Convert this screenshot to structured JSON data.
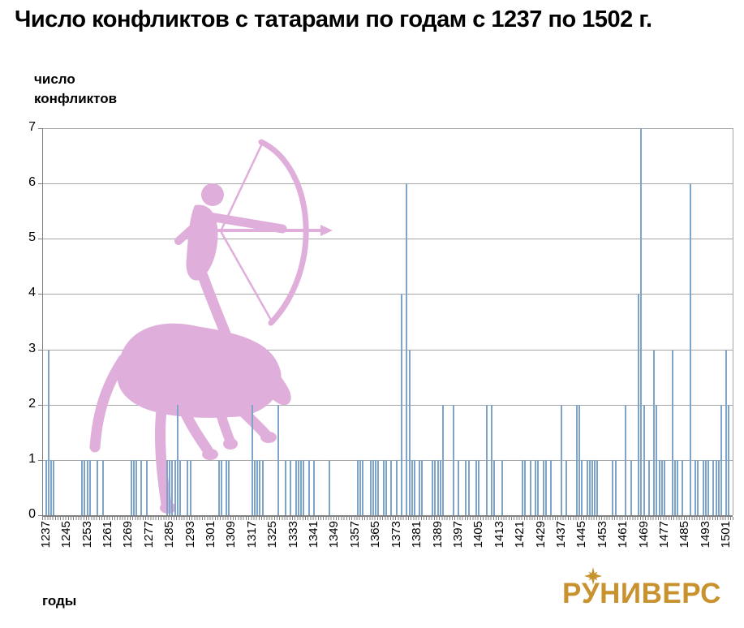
{
  "title": "Число конфликтов с татарами по годам с 1237 по 1502 г.",
  "y_axis_title": {
    "line1": "число",
    "line2": "конфликтов"
  },
  "x_axis_title": "годы",
  "logo": {
    "part1": "Р",
    "part2": "У",
    "part3": "НИВЕРС",
    "star_icon": "eight-ray-star"
  },
  "colors": {
    "bar": "#7fa4c9",
    "horse": "#dfaeda",
    "grid": "#a6a6a6",
    "axis": "#7f7f7f",
    "logo": "#c8922e",
    "text": "#000000"
  },
  "chart_data": {
    "type": "bar",
    "title": "Число конфликтов с татарами по годам с 1237 по 1502 г.",
    "xlabel": "годы",
    "ylabel": "число конфликтов",
    "x_range": [
      1237,
      1502
    ],
    "ylim": [
      0,
      7
    ],
    "grid": true,
    "yticks": [
      0,
      1,
      2,
      3,
      4,
      5,
      6,
      7
    ],
    "x_tick_years": [
      1237,
      1245,
      1253,
      1261,
      1269,
      1277,
      1285,
      1293,
      1301,
      1309,
      1317,
      1325,
      1333,
      1341,
      1349,
      1357,
      1365,
      1373,
      1381,
      1389,
      1397,
      1405,
      1413,
      1421,
      1429,
      1437,
      1445,
      1453,
      1461,
      1469,
      1477,
      1485,
      1493,
      1501
    ],
    "bars": [
      [
        1237,
        1
      ],
      [
        1238,
        3
      ],
      [
        1239,
        1
      ],
      [
        1240,
        1
      ],
      [
        1251,
        1
      ],
      [
        1252,
        1
      ],
      [
        1253,
        1
      ],
      [
        1254,
        1
      ],
      [
        1257,
        1
      ],
      [
        1259,
        1
      ],
      [
        1270,
        1
      ],
      [
        1271,
        1
      ],
      [
        1272,
        1
      ],
      [
        1274,
        1
      ],
      [
        1276,
        1
      ],
      [
        1284,
        1
      ],
      [
        1285,
        1
      ],
      [
        1286,
        1
      ],
      [
        1287,
        1
      ],
      [
        1288,
        2
      ],
      [
        1289,
        1
      ],
      [
        1292,
        1
      ],
      [
        1293,
        1
      ],
      [
        1304,
        1
      ],
      [
        1305,
        1
      ],
      [
        1307,
        1
      ],
      [
        1308,
        1
      ],
      [
        1317,
        2
      ],
      [
        1318,
        1
      ],
      [
        1319,
        1
      ],
      [
        1320,
        1
      ],
      [
        1321,
        1
      ],
      [
        1327,
        2
      ],
      [
        1330,
        1
      ],
      [
        1332,
        1
      ],
      [
        1334,
        1
      ],
      [
        1335,
        1
      ],
      [
        1336,
        1
      ],
      [
        1337,
        1
      ],
      [
        1339,
        1
      ],
      [
        1341,
        1
      ],
      [
        1347,
        1
      ],
      [
        1358,
        1
      ],
      [
        1359,
        1
      ],
      [
        1360,
        1
      ],
      [
        1363,
        1
      ],
      [
        1364,
        1
      ],
      [
        1365,
        1
      ],
      [
        1366,
        1
      ],
      [
        1368,
        1
      ],
      [
        1369,
        1
      ],
      [
        1371,
        1
      ],
      [
        1373,
        1
      ],
      [
        1375,
        4
      ],
      [
        1377,
        6
      ],
      [
        1378,
        3
      ],
      [
        1379,
        1
      ],
      [
        1380,
        1
      ],
      [
        1382,
        1
      ],
      [
        1383,
        1
      ],
      [
        1387,
        1
      ],
      [
        1388,
        1
      ],
      [
        1389,
        1
      ],
      [
        1390,
        1
      ],
      [
        1391,
        2
      ],
      [
        1395,
        2
      ],
      [
        1397,
        1
      ],
      [
        1400,
        1
      ],
      [
        1401,
        1
      ],
      [
        1404,
        1
      ],
      [
        1405,
        1
      ],
      [
        1408,
        2
      ],
      [
        1410,
        2
      ],
      [
        1411,
        1
      ],
      [
        1414,
        1
      ],
      [
        1422,
        1
      ],
      [
        1423,
        1
      ],
      [
        1425,
        1
      ],
      [
        1427,
        1
      ],
      [
        1428,
        1
      ],
      [
        1430,
        1
      ],
      [
        1431,
        1
      ],
      [
        1433,
        1
      ],
      [
        1437,
        2
      ],
      [
        1439,
        1
      ],
      [
        1443,
        2
      ],
      [
        1444,
        2
      ],
      [
        1445,
        1
      ],
      [
        1447,
        1
      ],
      [
        1448,
        1
      ],
      [
        1449,
        1
      ],
      [
        1450,
        1
      ],
      [
        1451,
        1
      ],
      [
        1457,
        1
      ],
      [
        1458,
        1
      ],
      [
        1462,
        2
      ],
      [
        1464,
        1
      ],
      [
        1467,
        4
      ],
      [
        1468,
        7
      ],
      [
        1469,
        2
      ],
      [
        1471,
        1
      ],
      [
        1473,
        3
      ],
      [
        1474,
        2
      ],
      [
        1475,
        1
      ],
      [
        1476,
        1
      ],
      [
        1477,
        1
      ],
      [
        1480,
        3
      ],
      [
        1481,
        1
      ],
      [
        1482,
        1
      ],
      [
        1484,
        1
      ],
      [
        1487,
        6
      ],
      [
        1489,
        1
      ],
      [
        1490,
        1
      ],
      [
        1492,
        1
      ],
      [
        1493,
        1
      ],
      [
        1494,
        1
      ],
      [
        1496,
        1
      ],
      [
        1497,
        1
      ],
      [
        1498,
        1
      ],
      [
        1499,
        2
      ],
      [
        1501,
        3
      ],
      [
        1502,
        2
      ]
    ]
  }
}
